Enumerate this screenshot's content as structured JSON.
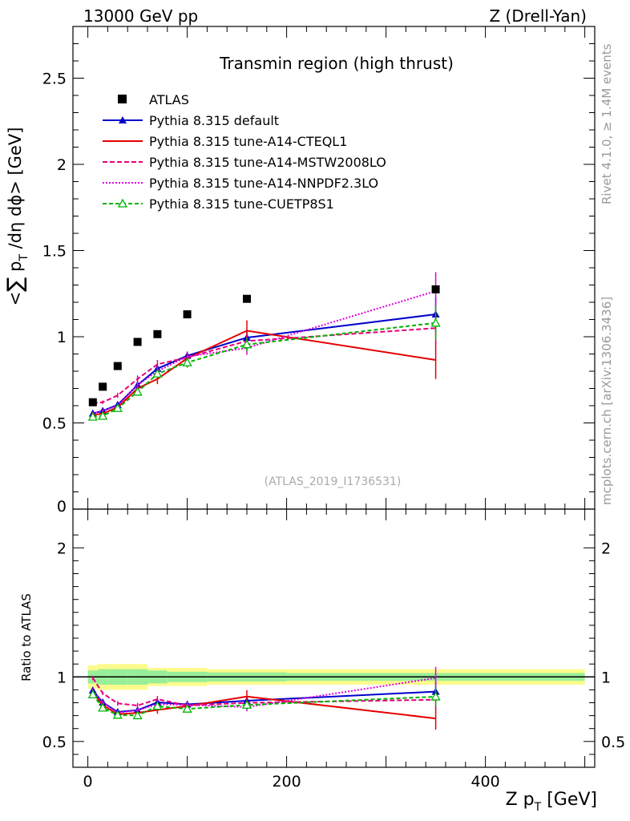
{
  "header": {
    "left_label": "13000 GeV pp",
    "right_label": "Z (Drell-Yan)"
  },
  "side": {
    "rivet_label": "Rivet 4.1.0, ≥ 1.4M events",
    "mcplots_label": "mcplots.cern.ch [arXiv:1306.3436]"
  },
  "chart_data": {
    "type": "line",
    "title": "Transmin region (high thrust)",
    "analysis_tag": "(ATLAS_2019_I1736531)",
    "ylabel_main": "<∑p_T/dη dϕ> [GeV]",
    "ylabel_ratio": "Ratio to ATLAS",
    "xlabel": "Z p_T [GeV]",
    "xlim": [
      -15,
      510
    ],
    "ylim_main": [
      0,
      2.8
    ],
    "ylim_ratio": [
      0.3,
      2.3
    ],
    "x_ticks": [
      0,
      200,
      400
    ],
    "y_ticks_main": [
      "0.5",
      "1",
      "1.5",
      "2",
      "2.5"
    ],
    "y_ticks_main_values": [
      0.5,
      1,
      1.5,
      2,
      2.5
    ],
    "y_zero_label": "0",
    "y_ticks_ratio": [
      "0.5",
      "1",
      "2"
    ],
    "y_ticks_ratio_values": [
      0.5,
      1,
      2
    ],
    "x": [
      5,
      15,
      30,
      50,
      70,
      100,
      160,
      350
    ],
    "data": {
      "name": "ATLAS",
      "values": [
        0.62,
        0.71,
        0.83,
        0.97,
        1.015,
        1.13,
        1.22,
        1.275
      ],
      "band_inner": [
        0.05,
        0.06,
        0.06,
        0.06,
        0.05,
        0.04,
        0.035,
        0.03
      ],
      "band_outer": [
        0.09,
        0.1,
        0.1,
        0.1,
        0.07,
        0.07,
        0.06,
        0.06
      ],
      "bins": [
        0,
        10,
        20,
        40,
        60,
        80,
        120,
        200,
        500
      ]
    },
    "series": [
      {
        "name": "Pythia 8.315 default",
        "color": "#0000cc",
        "dash": "",
        "marker": "triangle-filled",
        "values": [
          0.555,
          0.57,
          0.605,
          0.72,
          0.815,
          0.89,
          0.995,
          1.13
        ],
        "err": [
          0.01,
          0.01,
          0.01,
          0.015,
          0.02,
          0.02,
          0.04,
          0.1
        ]
      },
      {
        "name": "Pythia 8.315 tune-A14-CTEQL1",
        "color": "#e60000",
        "dash": "",
        "marker": "none",
        "values": [
          0.545,
          0.555,
          0.59,
          0.7,
          0.755,
          0.875,
          1.035,
          0.865
        ],
        "err": [
          0.01,
          0.01,
          0.015,
          0.02,
          0.03,
          0.03,
          0.06,
          0.11
        ]
      },
      {
        "name": "Pythia 8.315 tune-A14-MSTW2008LO",
        "color": "#e6007a",
        "dash": "6,3",
        "marker": "none",
        "values": [
          0.615,
          0.62,
          0.66,
          0.755,
          0.84,
          0.88,
          0.975,
          1.05
        ],
        "err": [
          0.01,
          0.01,
          0.015,
          0.02,
          0.025,
          0.03,
          0.04,
          0.1
        ]
      },
      {
        "name": "Pythia 8.315 tune-A14-NNPDF2.3LO",
        "color": "#e000e0",
        "dash": "2,2",
        "marker": "none",
        "values": [
          0.555,
          0.57,
          0.6,
          0.72,
          0.8,
          0.885,
          0.935,
          1.265
        ],
        "err": [
          0.01,
          0.01,
          0.015,
          0.02,
          0.025,
          0.03,
          0.04,
          0.11
        ]
      },
      {
        "name": "Pythia 8.315 tune-CUETP8S1",
        "color": "#00b400",
        "dash": "5,3",
        "marker": "triangle-open",
        "values": [
          0.535,
          0.54,
          0.585,
          0.68,
          0.785,
          0.85,
          0.955,
          1.08
        ],
        "err": [
          0.01,
          0.01,
          0.015,
          0.02,
          0.025,
          0.03,
          0.04,
          0.1
        ]
      }
    ]
  }
}
